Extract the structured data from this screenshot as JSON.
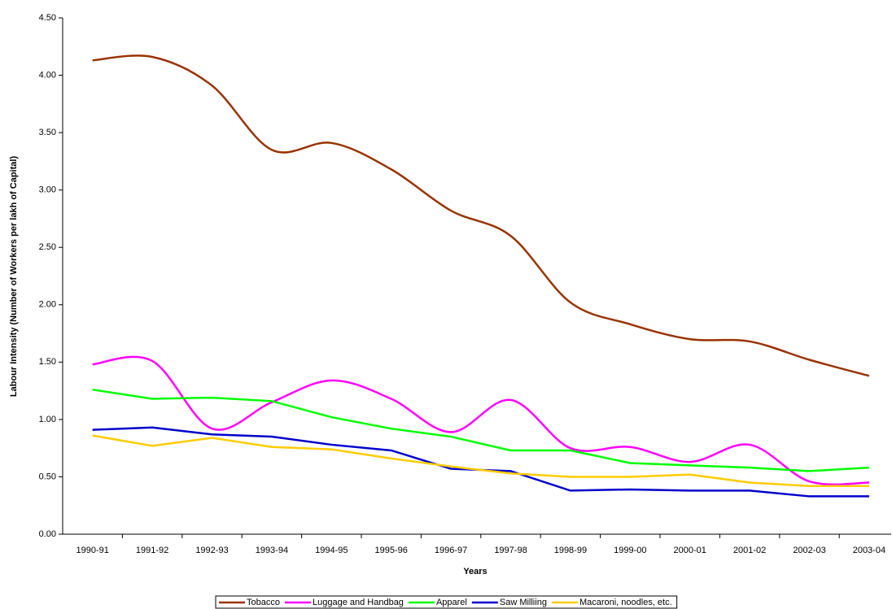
{
  "chart_data": {
    "type": "line",
    "x_label": "Years",
    "y_label": "Labour Intensity (Number of Workers per lakh of Capital)",
    "categories": [
      "1990-91",
      "1991-92",
      "1992-93",
      "1993-94",
      "1994-95",
      "1995-96",
      "1996-97",
      "1997-98",
      "1998-99",
      "1999-00",
      "2000-01",
      "2001-02",
      "2002-03",
      "2003-04"
    ],
    "series": [
      {
        "name": "Tobacco",
        "color": "#993300",
        "smooth": true,
        "values": [
          4.13,
          4.16,
          3.91,
          3.35,
          3.41,
          3.18,
          2.82,
          2.6,
          2.02,
          1.83,
          1.7,
          1.68,
          1.52,
          1.38
        ]
      },
      {
        "name": "Luggage and Handbag",
        "color": "#ff00ff",
        "smooth": true,
        "values": [
          1.48,
          1.51,
          0.92,
          1.15,
          1.34,
          1.18,
          0.89,
          1.17,
          0.75,
          0.76,
          0.63,
          0.78,
          0.46,
          0.45
        ]
      },
      {
        "name": "Apparel",
        "color": "#00ff00",
        "smooth": false,
        "values": [
          1.26,
          1.18,
          1.19,
          1.16,
          1.02,
          0.92,
          0.85,
          0.73,
          0.73,
          0.62,
          0.6,
          0.58,
          0.55,
          0.58
        ]
      },
      {
        "name": "Saw Milliing",
        "color": "#0000cc",
        "smooth": false,
        "values": [
          0.91,
          0.93,
          0.87,
          0.85,
          0.78,
          0.73,
          0.57,
          0.55,
          0.38,
          0.39,
          0.38,
          0.38,
          0.33,
          0.33
        ]
      },
      {
        "name": "Macaroni, noodles, etc.",
        "color": "#ffcc00",
        "smooth": false,
        "values": [
          0.86,
          0.77,
          0.84,
          0.76,
          0.74,
          0.66,
          0.59,
          0.53,
          0.5,
          0.5,
          0.52,
          0.45,
          0.42,
          0.42
        ]
      }
    ],
    "ylim": [
      0,
      4.5
    ],
    "yticks": [
      {
        "value": 0,
        "label": "0.00"
      },
      {
        "value": 0.5,
        "label": "0.50"
      },
      {
        "value": 1,
        "label": "1.00"
      },
      {
        "value": 1.5,
        "label": "1.50"
      },
      {
        "value": 2,
        "label": "2.00"
      },
      {
        "value": 2.5,
        "label": "2.50"
      },
      {
        "value": 3,
        "label": "3.00"
      },
      {
        "value": 3.5,
        "label": "3.50"
      },
      {
        "value": 4,
        "label": "4.00"
      },
      {
        "value": 4.5,
        "label": "4.50"
      }
    ],
    "grid": false,
    "legend": "bottom"
  }
}
